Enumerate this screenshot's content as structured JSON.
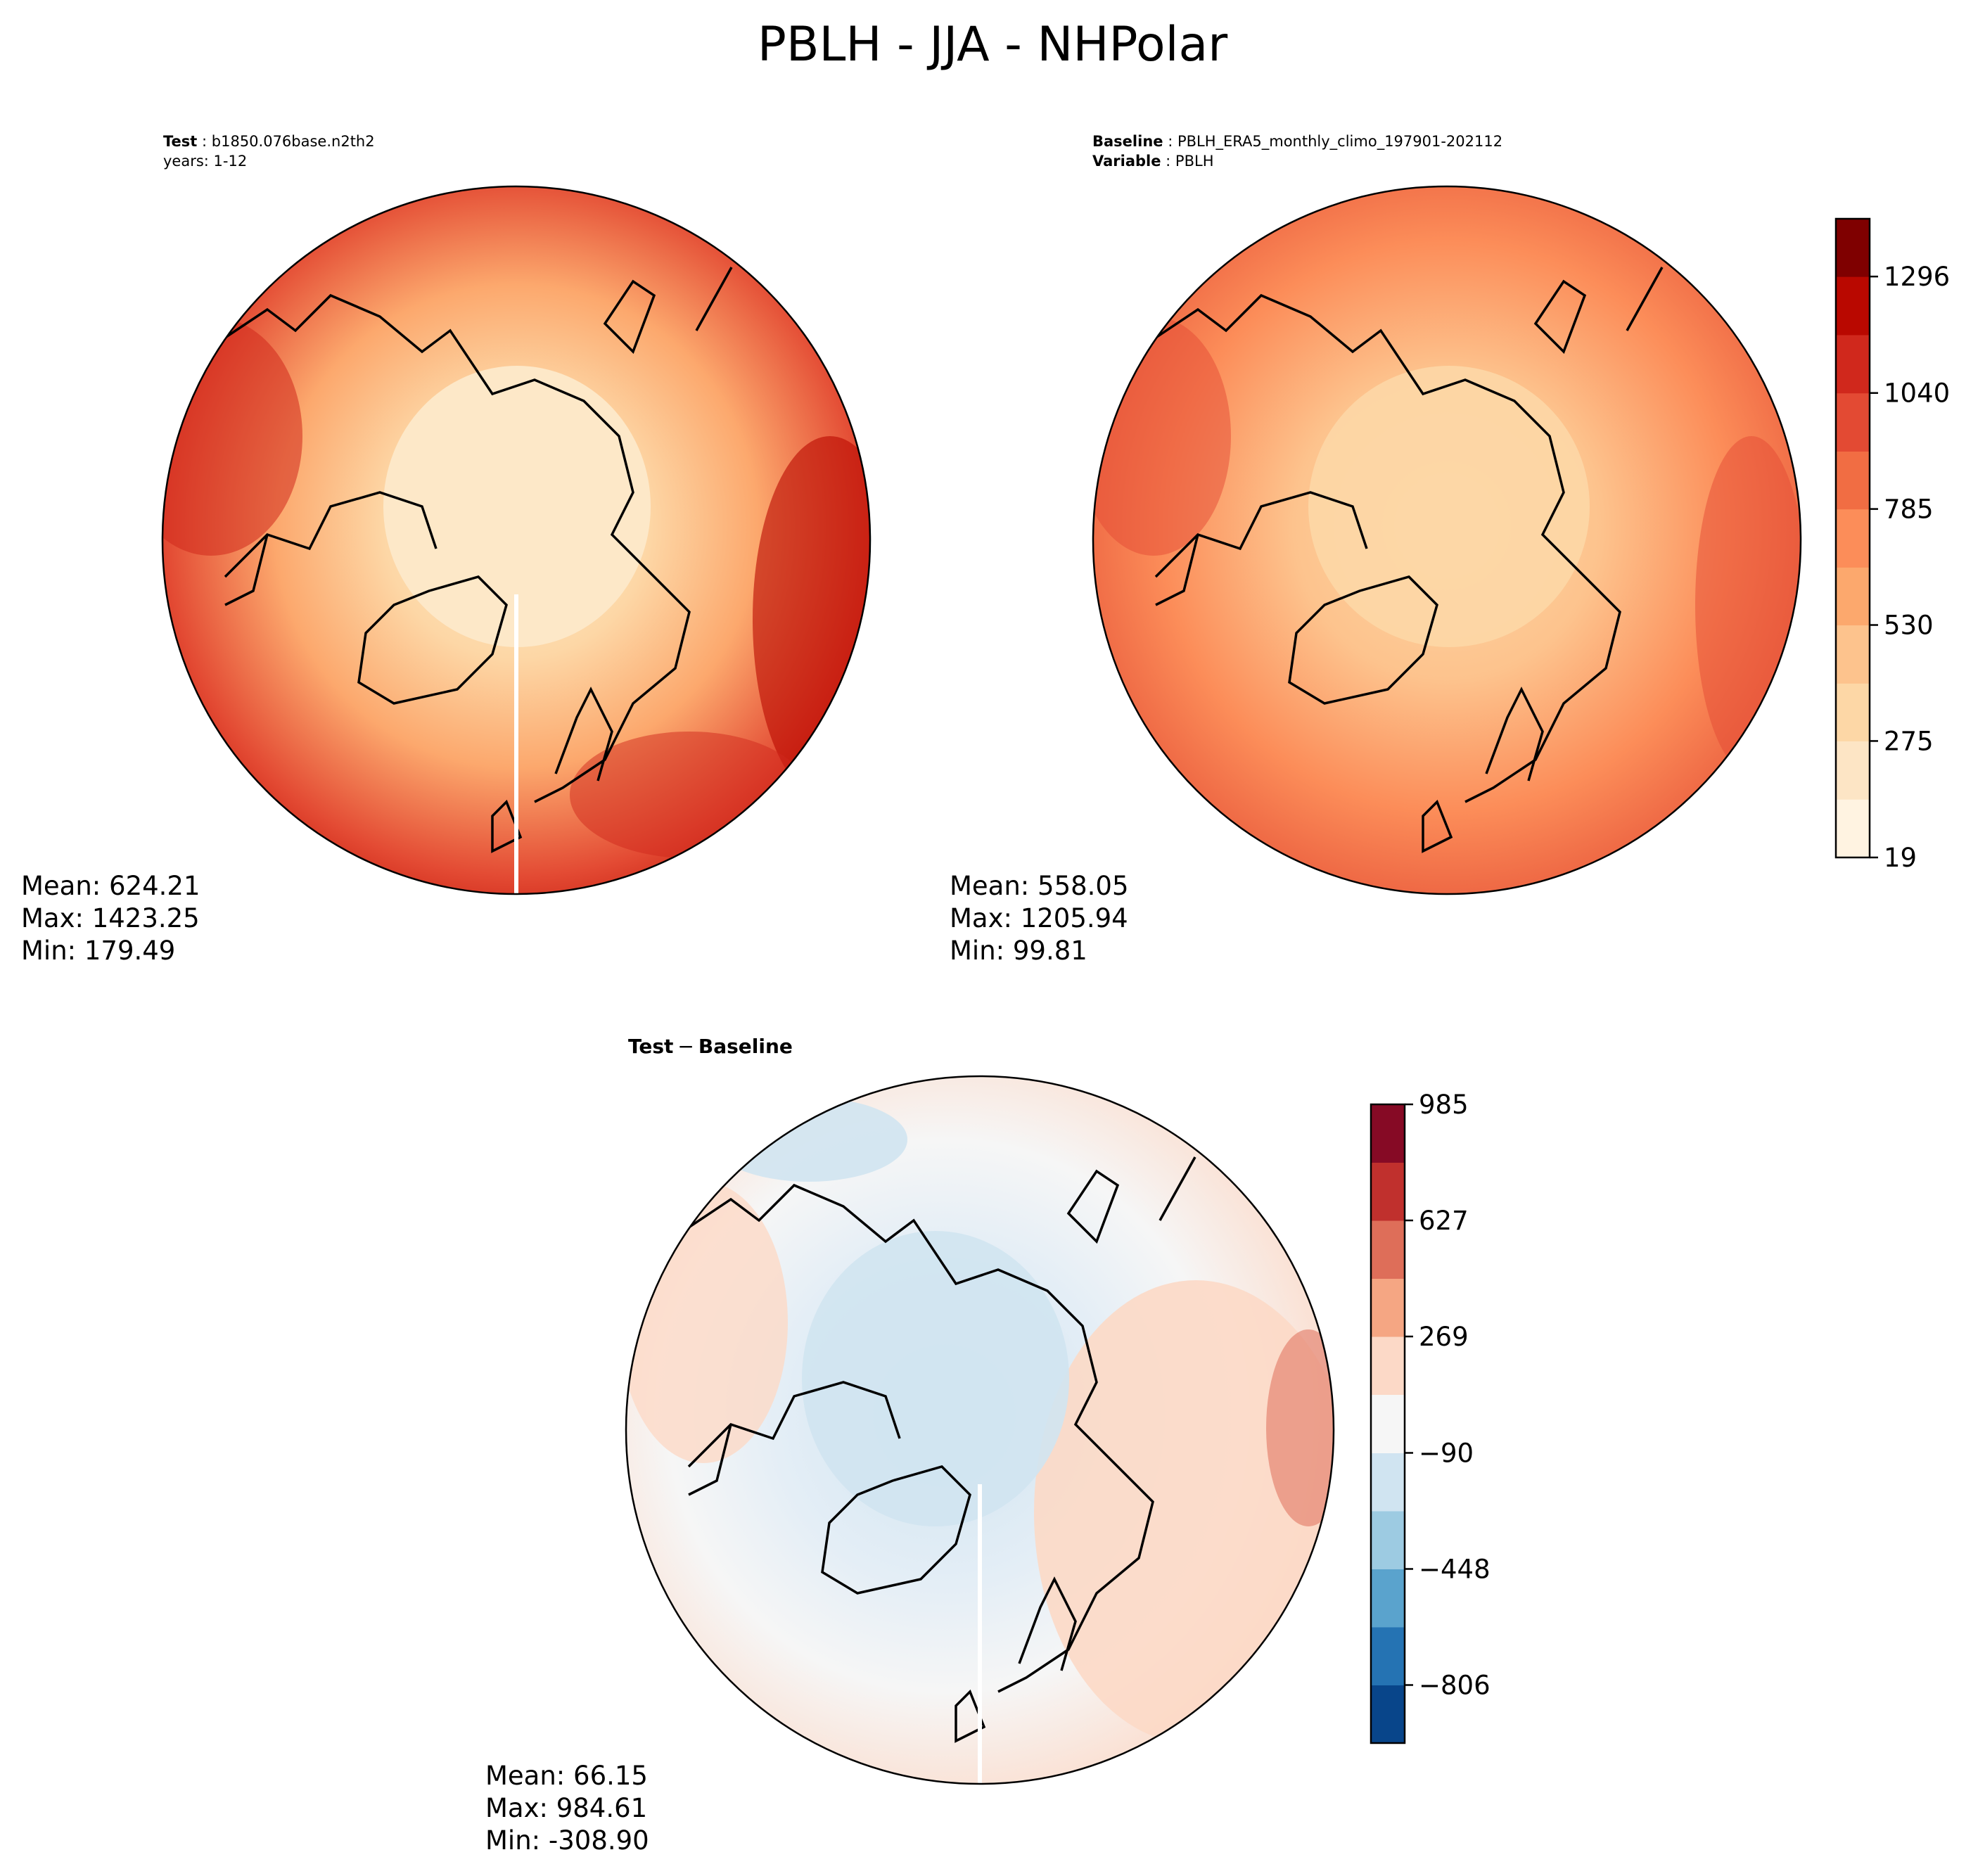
{
  "figure": {
    "title": "PBLH - JJA - NHPolar"
  },
  "chart_data": [
    {
      "type": "heatmap",
      "panel": "test",
      "projection": "North polar stereographic",
      "header": [
        {
          "label": "Test",
          "value": "b1850.076base.n2th2"
        },
        {
          "label": "",
          "value": "years: 1-12"
        }
      ],
      "stats": {
        "mean": "Mean: 624.21",
        "max": "Max: 1423.25",
        "min": "Min: 179.49"
      },
      "field_summary": {
        "mean": 624.21,
        "max": 1423.25,
        "min": 179.49
      },
      "colormap": "OrRd-like (shared with baseline)"
    },
    {
      "type": "heatmap",
      "panel": "baseline",
      "projection": "North polar stereographic",
      "header": [
        {
          "label": "Baseline",
          "value": "PBLH_ERA5_monthly_climo_197901-202112"
        },
        {
          "label": "Variable",
          "value": "PBLH"
        }
      ],
      "stats": {
        "mean": "Mean: 558.05",
        "max": "Max: 1205.94",
        "min": "Min: 99.81"
      },
      "field_summary": {
        "mean": 558.05,
        "max": 1205.94,
        "min": 99.81
      },
      "colorbar": {
        "range": [
          19,
          1423
        ],
        "levels": [
          19,
          147,
          275,
          402,
          530,
          657,
          785,
          912,
          1040,
          1168,
          1296,
          1423
        ],
        "tick_values": [
          19,
          275,
          530,
          785,
          1040,
          1296
        ],
        "tick_labels": [
          "19",
          "275",
          "530",
          "785",
          "1040",
          "1296"
        ],
        "colors": [
          "#fff3e1",
          "#fde5c5",
          "#fdd7a6",
          "#fdc38d",
          "#fca86d",
          "#fc8d59",
          "#f16d43",
          "#e34a33",
          "#d0281c",
          "#b90800",
          "#7f0000"
        ]
      }
    },
    {
      "type": "heatmap",
      "panel": "difference",
      "projection": "North polar stereographic",
      "title": "Test − Baseline",
      "title_bold_parts": [
        "Test",
        "Baseline"
      ],
      "title_operator": "−",
      "stats": {
        "mean": "Mean: 66.15",
        "max": "Max: 984.61",
        "min": "Min: -308.90"
      },
      "field_summary": {
        "mean": 66.15,
        "max": 984.61,
        "min": -308.9
      },
      "colorbar": {
        "range": [
          -985,
          985
        ],
        "levels": [
          -985,
          -806,
          -627,
          -448,
          -269,
          -90,
          90,
          269,
          448,
          627,
          806,
          985
        ],
        "tick_values": [
          -806,
          -448,
          -90,
          269,
          627,
          985
        ],
        "tick_labels": [
          "−806",
          "−448",
          "−90",
          "269",
          "627",
          "985"
        ],
        "colors": [
          "#08458a",
          "#2573b3",
          "#5aa3cd",
          "#9dcbe2",
          "#d0e4f1",
          "#f6f6f6",
          "#fcd9c7",
          "#f5a683",
          "#de6e59",
          "#c0302d",
          "#860a25"
        ]
      }
    }
  ]
}
